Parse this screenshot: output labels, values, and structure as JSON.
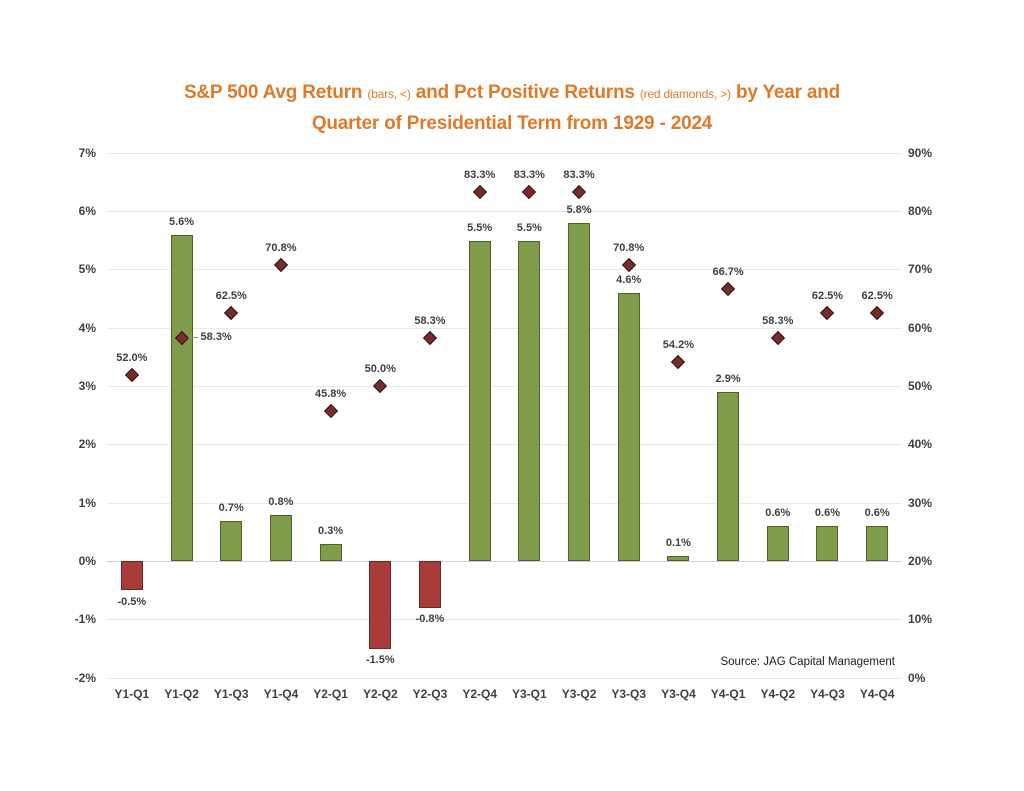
{
  "title": {
    "part1": "S&P 500 Avg Return",
    "paren1": "(bars, <)",
    "part2": "and Pct Positive Returns",
    "paren2": "(red diamonds, >)",
    "part3": "by Year and",
    "line2": "Quarter of Presidential Term from 1929 - 2024"
  },
  "colors": {
    "title": "#de7a28",
    "bar_positive": "#7e9c49",
    "bar_positive_border": "#4c6227",
    "bar_negative": "#a83c38",
    "bar_negative_border": "#6e2523",
    "diamond": "#722e2b",
    "diamond_border": "#3a1311",
    "data_label": "#3f3f3f",
    "axis_label": "#404040",
    "gridline": "#e4e9ed",
    "zero_line": "#c9d0d6"
  },
  "chart_data": {
    "type": "bar",
    "title": "S&P 500 Avg Return (bars, <) and Pct Positive Returns (red diamonds, >) by Year and Quarter of Presidential Term from 1929 - 2024",
    "source": "Source: JAG Capital Management",
    "grid": true,
    "legend": "none (explained in title)",
    "categories": [
      "Y1-Q1",
      "Y1-Q2",
      "Y1-Q3",
      "Y1-Q4",
      "Y2-Q1",
      "Y2-Q2",
      "Y2-Q3",
      "Y2-Q4",
      "Y3-Q1",
      "Y3-Q2",
      "Y3-Q3",
      "Y3-Q4",
      "Y4-Q1",
      "Y4-Q2",
      "Y4-Q3",
      "Y4-Q4"
    ],
    "series": [
      {
        "name": "S&P 500 Avg Return",
        "marker": "bar",
        "axis": "left",
        "values": [
          -0.5,
          5.6,
          0.7,
          0.8,
          0.3,
          -1.5,
          -0.8,
          5.5,
          5.5,
          5.8,
          4.6,
          0.1,
          2.9,
          0.6,
          0.6,
          0.6
        ],
        "labels": [
          "-0.5%",
          "5.6%",
          "0.7%",
          "0.8%",
          "0.3%",
          "-1.5%",
          "-0.8%",
          "5.5%",
          "5.5%",
          "5.8%",
          "4.6%",
          "0.1%",
          "2.9%",
          "0.6%",
          "0.6%",
          "0.6%"
        ]
      },
      {
        "name": "Pct Positive Returns",
        "marker": "diamond",
        "axis": "right",
        "values": [
          52.0,
          58.3,
          62.5,
          70.8,
          45.8,
          50.0,
          58.3,
          83.3,
          83.3,
          83.3,
          70.8,
          54.2,
          66.7,
          58.3,
          62.5,
          62.5
        ],
        "labels": [
          "52.0%",
          "58.3%",
          "62.5%",
          "70.8%",
          "45.8%",
          "50.0%",
          "58.3%",
          "83.3%",
          "83.3%",
          "83.3%",
          "70.8%",
          "54.2%",
          "66.7%",
          "58.3%",
          "62.5%",
          "62.5%"
        ],
        "label_side": [
          "above",
          "right",
          "above",
          "above",
          "above",
          "above",
          "above",
          "above",
          "above",
          "above",
          "above",
          "above",
          "above",
          "above",
          "above",
          "above"
        ]
      }
    ],
    "left_axis": {
      "min": -2,
      "max": 7,
      "ticks": [
        "7%",
        "6%",
        "5%",
        "4%",
        "3%",
        "2%",
        "1%",
        "0%",
        "-1%",
        "-2%"
      ]
    },
    "right_axis": {
      "min": 0,
      "max": 90,
      "ticks": [
        "90%",
        "80%",
        "70%",
        "60%",
        "50%",
        "40%",
        "30%",
        "20%",
        "10%",
        "0%"
      ]
    }
  }
}
